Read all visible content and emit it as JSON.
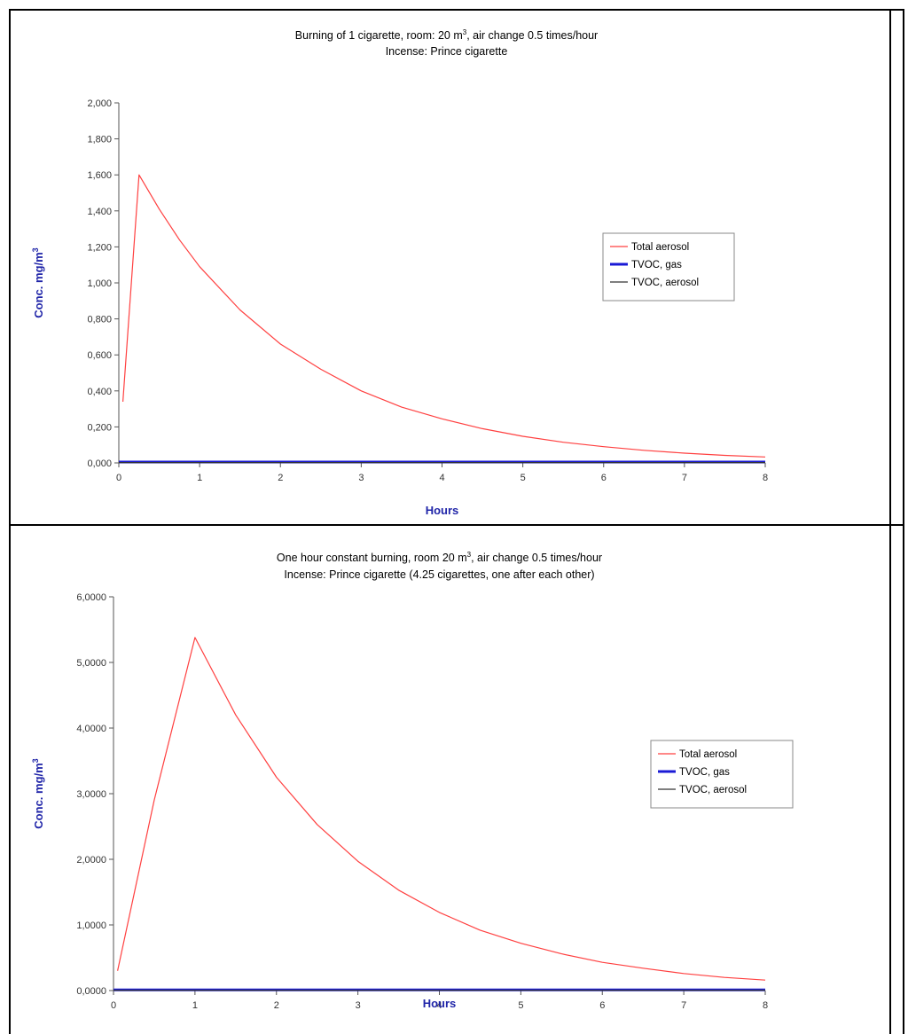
{
  "chart_data": [
    {
      "type": "line",
      "title_line1": "Burning of 1 cigarette, room: 20 m",
      "title_sup": "3",
      "title_line1_tail": ", air change 0.5 times/hour",
      "title_line2": "Incense: Prince cigarette",
      "xlabel": "Hours",
      "ylabel": "Conc. mg/m",
      "ylabel_sup": "3",
      "xlim": [
        0,
        8
      ],
      "ylim": [
        0,
        2
      ],
      "x_ticks": [
        "0",
        "1",
        "2",
        "3",
        "4",
        "5",
        "6",
        "7",
        "8"
      ],
      "y_ticks": [
        "0,000",
        "0,200",
        "0,400",
        "0,600",
        "0,800",
        "1,000",
        "1,200",
        "1,400",
        "1,600",
        "1,800",
        "2,000"
      ],
      "legend_position": "right",
      "series": [
        {
          "name": "Total aerosol",
          "color": "#ff4040",
          "x": [
            0.05,
            0.25,
            0.5,
            0.75,
            1,
            1.5,
            2,
            2.5,
            3,
            3.5,
            4,
            4.5,
            5,
            5.5,
            6,
            6.5,
            7,
            7.5,
            8
          ],
          "y": [
            0.34,
            1.6,
            1.41,
            1.24,
            1.09,
            0.85,
            0.66,
            0.52,
            0.4,
            0.31,
            0.245,
            0.19,
            0.148,
            0.115,
            0.09,
            0.07,
            0.054,
            0.042,
            0.033
          ]
        },
        {
          "name": "TVOC, gas",
          "color": "#1a1ad6",
          "x": [
            0,
            8
          ],
          "y": [
            0.005,
            0.005
          ]
        },
        {
          "name": "TVOC, aerosol",
          "color": "#333333",
          "x": [
            0,
            8
          ],
          "y": [
            0.002,
            0.002
          ]
        }
      ]
    },
    {
      "type": "line",
      "title_line1": "One hour constant burning, room 20 m",
      "title_sup": "3",
      "title_line1_tail": ", air change 0.5 times/hour",
      "title_line2": "Incense: Prince cigarette (4.25 cigarettes, one after each other)",
      "xlabel": "Hours",
      "ylabel": "Conc. mg/m",
      "ylabel_sup": "3",
      "xlim": [
        0,
        8
      ],
      "ylim": [
        0,
        6
      ],
      "x_ticks": [
        "0",
        "1",
        "2",
        "3",
        "4",
        "5",
        "6",
        "7",
        "8"
      ],
      "y_ticks": [
        "0,0000",
        "1,0000",
        "2,0000",
        "3,0000",
        "4,0000",
        "5,0000",
        "6,0000"
      ],
      "legend_position": "right",
      "series": [
        {
          "name": "Total aerosol",
          "color": "#ff4040",
          "x": [
            0.05,
            0.5,
            1,
            1.5,
            2,
            2.5,
            3,
            3.5,
            4,
            4.5,
            5,
            5.5,
            6,
            6.5,
            7,
            7.5,
            8
          ],
          "y": [
            0.3,
            2.9,
            5.38,
            4.2,
            3.25,
            2.53,
            1.97,
            1.53,
            1.19,
            0.92,
            0.72,
            0.56,
            0.43,
            0.34,
            0.26,
            0.2,
            0.16
          ]
        },
        {
          "name": "TVOC, gas",
          "color": "#1a1ad6",
          "x": [
            0,
            8
          ],
          "y": [
            0.01,
            0.01
          ]
        },
        {
          "name": "TVOC, aerosol",
          "color": "#333333",
          "x": [
            0,
            8
          ],
          "y": [
            0.005,
            0.005
          ]
        }
      ]
    }
  ]
}
